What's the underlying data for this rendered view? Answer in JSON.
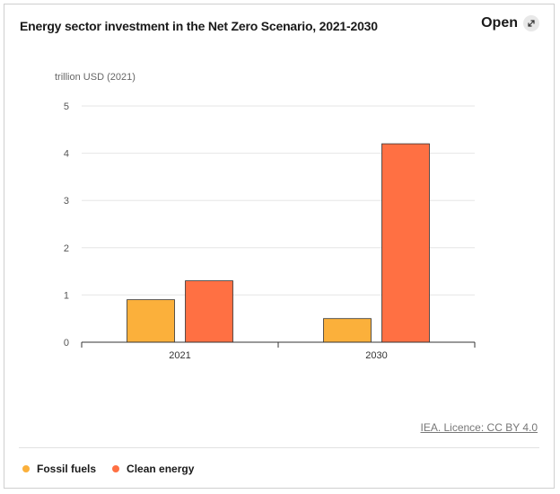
{
  "title": "Energy sector investment in the Net Zero Scenario, 2021-2030",
  "open_label": "Open",
  "licence_text": "IEA. Licence: CC BY 4.0",
  "colors": {
    "fossil": "#fbb03b",
    "clean": "#ff7043",
    "grid": "#e6e6e6",
    "axis": "#333333"
  },
  "chart_data": {
    "type": "bar",
    "ylabel": "trillion USD (2021)",
    "ylim": [
      0,
      5
    ],
    "yticks": [
      "0",
      "1",
      "2",
      "3",
      "4",
      "5"
    ],
    "categories": [
      "2021",
      "2030"
    ],
    "series": [
      {
        "name": "Fossil fuels",
        "values": [
          0.9,
          0.5
        ]
      },
      {
        "name": "Clean energy",
        "values": [
          1.3,
          4.2
        ]
      }
    ],
    "grid": true,
    "legend_position": "bottom-left"
  }
}
